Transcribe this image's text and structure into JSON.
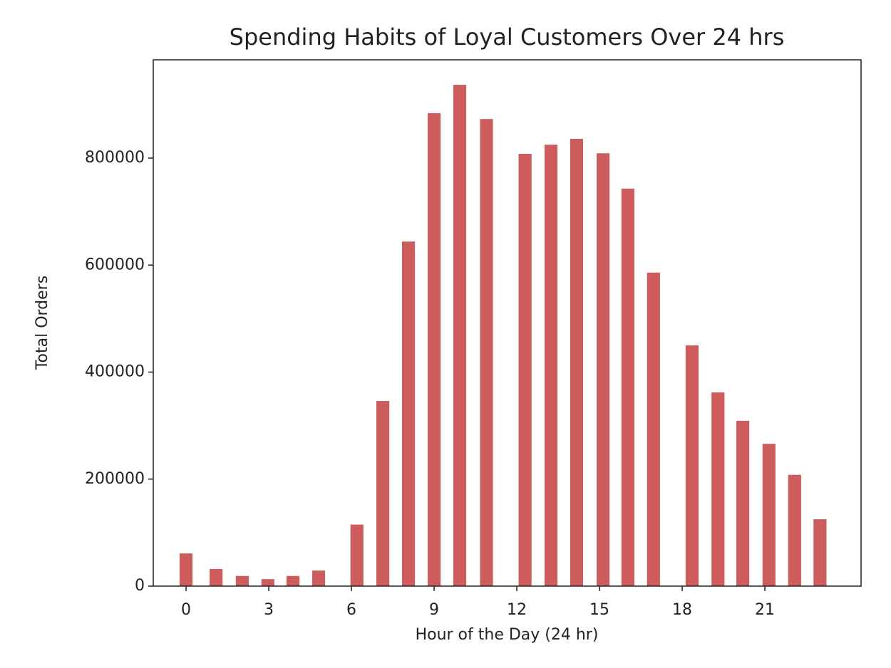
{
  "chart_data": {
    "type": "bar",
    "title": "Spending Habits of Loyal Customers Over 24 hrs",
    "xlabel": "Hour of the Day (24 hr)",
    "ylabel": "Total Orders",
    "x": [
      0,
      1.09,
      2.04,
      2.97,
      3.88,
      4.81,
      6.2,
      7.14,
      8.07,
      9,
      9.93,
      10.9,
      12.3,
      13.24,
      14.17,
      15.13,
      16.03,
      16.96,
      18.36,
      19.3,
      20.2,
      21.15,
      22.08,
      23
    ],
    "values": [
      61000,
      32000,
      19000,
      13000,
      19000,
      29000,
      115000,
      346000,
      644000,
      884000,
      937000,
      873000,
      808000,
      825000,
      836000,
      809000,
      743000,
      586000,
      450000,
      362000,
      309000,
      266000,
      208000,
      125000
    ],
    "bar_width": 0.47,
    "color": "#cd5c5c",
    "xlim": [
      -1.19,
      24.49
    ],
    "ylim": [
      0,
      983700
    ],
    "xticks": [
      0,
      3,
      6,
      9,
      12,
      15,
      18,
      21
    ],
    "yticks": [
      0,
      200000,
      400000,
      600000,
      800000
    ],
    "grid": false
  }
}
